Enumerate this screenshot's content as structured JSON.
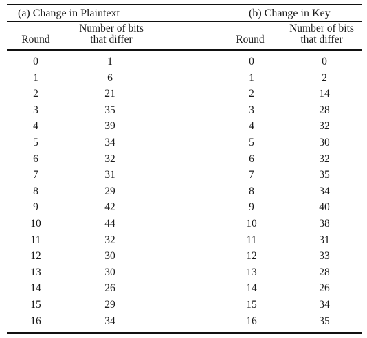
{
  "table": {
    "section_a": "(a) Change in Plaintext",
    "section_b": "(b) Change in Key",
    "columns": {
      "round": "Round",
      "bits_line1": "Number of bits",
      "bits_line2": "that differ"
    },
    "rows": [
      {
        "round_a": "0",
        "bits_a": "1",
        "round_b": "0",
        "bits_b": "0"
      },
      {
        "round_a": "1",
        "bits_a": "6",
        "round_b": "1",
        "bits_b": "2"
      },
      {
        "round_a": "2",
        "bits_a": "21",
        "round_b": "2",
        "bits_b": "14"
      },
      {
        "round_a": "3",
        "bits_a": "35",
        "round_b": "3",
        "bits_b": "28"
      },
      {
        "round_a": "4",
        "bits_a": "39",
        "round_b": "4",
        "bits_b": "32"
      },
      {
        "round_a": "5",
        "bits_a": "34",
        "round_b": "5",
        "bits_b": "30"
      },
      {
        "round_a": "6",
        "bits_a": "32",
        "round_b": "6",
        "bits_b": "32"
      },
      {
        "round_a": "7",
        "bits_a": "31",
        "round_b": "7",
        "bits_b": "35"
      },
      {
        "round_a": "8",
        "bits_a": "29",
        "round_b": "8",
        "bits_b": "34"
      },
      {
        "round_a": "9",
        "bits_a": "42",
        "round_b": "9",
        "bits_b": "40"
      },
      {
        "round_a": "10",
        "bits_a": "44",
        "round_b": "10",
        "bits_b": "38"
      },
      {
        "round_a": "11",
        "bits_a": "32",
        "round_b": "11",
        "bits_b": "31"
      },
      {
        "round_a": "12",
        "bits_a": "30",
        "round_b": "12",
        "bits_b": "33"
      },
      {
        "round_a": "13",
        "bits_a": "30",
        "round_b": "13",
        "bits_b": "28"
      },
      {
        "round_a": "14",
        "bits_a": "26",
        "round_b": "14",
        "bits_b": "26"
      },
      {
        "round_a": "15",
        "bits_a": "29",
        "round_b": "15",
        "bits_b": "34"
      },
      {
        "round_a": "16",
        "bits_a": "34",
        "round_b": "16",
        "bits_b": "35"
      }
    ]
  }
}
